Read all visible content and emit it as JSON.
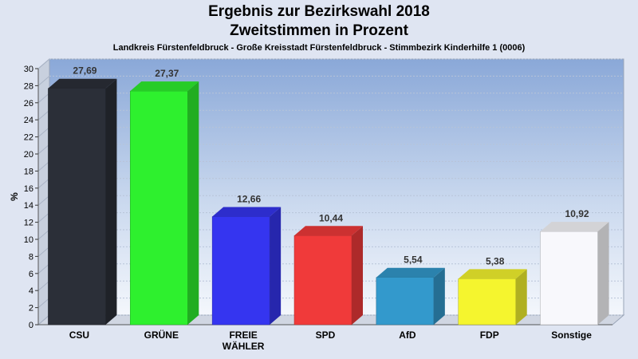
{
  "title": "Ergebnis zur Bezirkswahl 2018",
  "subtitle": "Zweitstimmen in Prozent",
  "caption": "Landkreis Fürstenfeldbruck - Große Kreisstadt Fürstenfeldbruck - Stimmbezirk Kinderhilfe 1 (0006)",
  "chart_data": {
    "type": "bar",
    "categories": [
      "CSU",
      "GRÜNE",
      "FREIE WÄHLER",
      "SPD",
      "AfD",
      "FDP",
      "Sonstige"
    ],
    "category_lines": [
      [
        "CSU"
      ],
      [
        "GRÜNE"
      ],
      [
        "FREIE",
        "WÄHLER"
      ],
      [
        "SPD"
      ],
      [
        "AfD"
      ],
      [
        "FDP"
      ],
      [
        "Sonstige"
      ]
    ],
    "values": [
      27.69,
      27.37,
      12.66,
      10.44,
      5.54,
      5.38,
      10.92
    ],
    "value_labels": [
      "27,69",
      "27,37",
      "12,66",
      "10,44",
      "5,54",
      "5,38",
      "10,92"
    ],
    "colors": [
      "#2b2f38",
      "#2ef02e",
      "#3535f0",
      "#f03a3a",
      "#3399cc",
      "#f5f52e",
      "#f8f8fc"
    ],
    "ylabel": "%",
    "ylim": [
      0,
      30
    ],
    "yticks": [
      0,
      2,
      4,
      6,
      8,
      10,
      12,
      14,
      16,
      18,
      20,
      22,
      24,
      26,
      28,
      30
    ],
    "grid": true,
    "chart_style": "3d-bar"
  }
}
